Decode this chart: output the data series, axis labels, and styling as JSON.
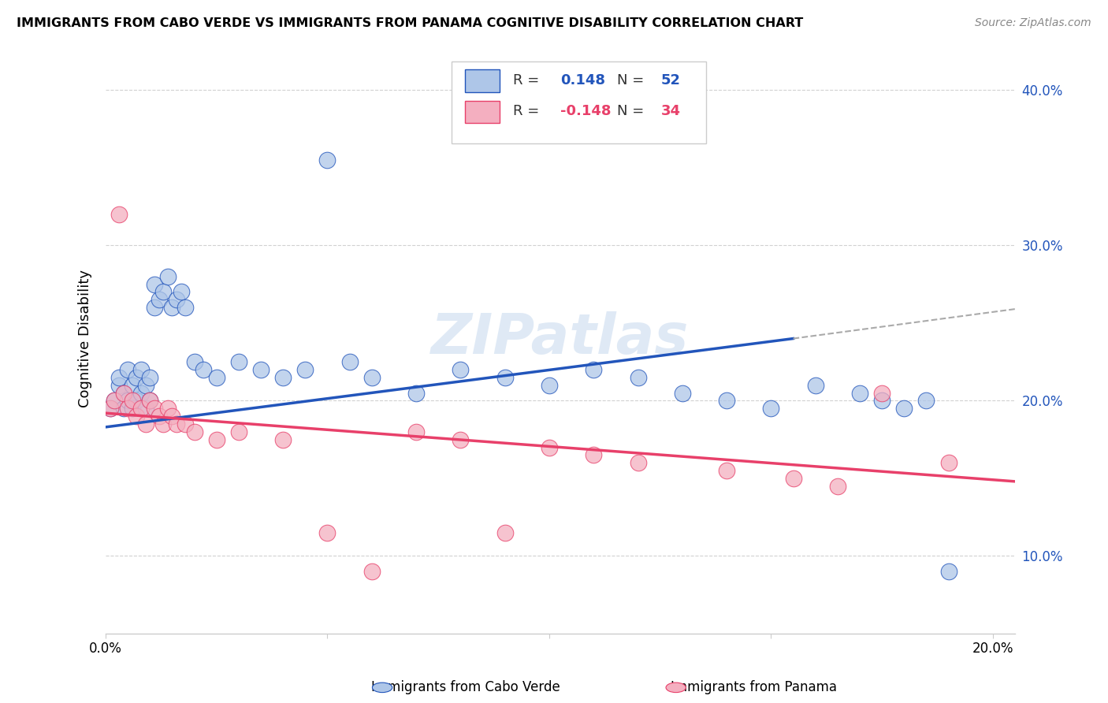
{
  "title": "IMMIGRANTS FROM CABO VERDE VS IMMIGRANTS FROM PANAMA COGNITIVE DISABILITY CORRELATION CHART",
  "source": "Source: ZipAtlas.com",
  "ylabel": "Cognitive Disability",
  "xlim": [
    0.0,
    0.205
  ],
  "ylim": [
    0.05,
    0.43
  ],
  "yticks": [
    0.1,
    0.2,
    0.3,
    0.4
  ],
  "xticks": [
    0.0,
    0.05,
    0.1,
    0.15,
    0.2
  ],
  "xtick_labels": [
    "0.0%",
    "",
    "",
    "",
    "20.0%"
  ],
  "color_cabo_verde": "#aec6e8",
  "color_panama": "#f4afc0",
  "line_color_cabo_verde": "#2255bb",
  "line_color_panama": "#e8406a",
  "watermark": "ZIPatlas",
  "cabo_verde_x": [
    0.001,
    0.002,
    0.003,
    0.003,
    0.004,
    0.004,
    0.005,
    0.005,
    0.006,
    0.006,
    0.007,
    0.007,
    0.008,
    0.008,
    0.009,
    0.009,
    0.01,
    0.01,
    0.011,
    0.011,
    0.012,
    0.013,
    0.014,
    0.015,
    0.016,
    0.017,
    0.018,
    0.02,
    0.022,
    0.025,
    0.03,
    0.035,
    0.04,
    0.045,
    0.05,
    0.055,
    0.06,
    0.07,
    0.08,
    0.09,
    0.1,
    0.11,
    0.12,
    0.13,
    0.14,
    0.15,
    0.16,
    0.17,
    0.175,
    0.18,
    0.185,
    0.19
  ],
  "cabo_verde_y": [
    0.195,
    0.2,
    0.21,
    0.215,
    0.195,
    0.205,
    0.2,
    0.22,
    0.195,
    0.21,
    0.2,
    0.215,
    0.205,
    0.22,
    0.21,
    0.195,
    0.215,
    0.2,
    0.26,
    0.275,
    0.265,
    0.27,
    0.28,
    0.26,
    0.265,
    0.27,
    0.26,
    0.225,
    0.22,
    0.215,
    0.225,
    0.22,
    0.215,
    0.22,
    0.355,
    0.225,
    0.215,
    0.205,
    0.22,
    0.215,
    0.21,
    0.22,
    0.215,
    0.205,
    0.2,
    0.195,
    0.21,
    0.205,
    0.2,
    0.195,
    0.2,
    0.09
  ],
  "panama_x": [
    0.001,
    0.002,
    0.003,
    0.004,
    0.005,
    0.006,
    0.007,
    0.008,
    0.009,
    0.01,
    0.011,
    0.012,
    0.013,
    0.014,
    0.015,
    0.016,
    0.018,
    0.02,
    0.025,
    0.03,
    0.04,
    0.05,
    0.06,
    0.07,
    0.08,
    0.09,
    0.1,
    0.11,
    0.12,
    0.14,
    0.155,
    0.165,
    0.175,
    0.19
  ],
  "panama_y": [
    0.195,
    0.2,
    0.32,
    0.205,
    0.195,
    0.2,
    0.19,
    0.195,
    0.185,
    0.2,
    0.195,
    0.19,
    0.185,
    0.195,
    0.19,
    0.185,
    0.185,
    0.18,
    0.175,
    0.18,
    0.175,
    0.115,
    0.09,
    0.18,
    0.175,
    0.115,
    0.17,
    0.165,
    0.16,
    0.155,
    0.15,
    0.145,
    0.205,
    0.16
  ],
  "line_cabo_x0": 0.0,
  "line_cabo_y0": 0.183,
  "line_cabo_x1": 0.155,
  "line_cabo_y1": 0.24,
  "line_cabo_dash_x0": 0.155,
  "line_cabo_dash_y0": 0.24,
  "line_cabo_dash_x1": 0.205,
  "line_cabo_dash_y1": 0.259,
  "line_pan_x0": 0.0,
  "line_pan_y0": 0.192,
  "line_pan_x1": 0.205,
  "line_pan_y1": 0.148
}
